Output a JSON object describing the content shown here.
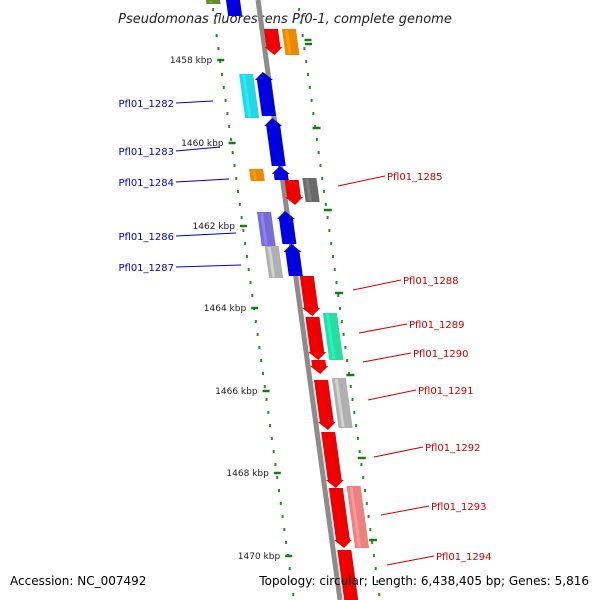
{
  "title": "Pseudomonas fluorescens Pf0-1, complete genome",
  "footer": {
    "accession": "Accession: NC_007492",
    "summary": "Topology: circular; Length: 6,438,405 bp; Genes: 5,816"
  },
  "colors": {
    "backbone": "#8c8c8c",
    "tick": "#1a7a1a",
    "dot": "#2e8b2e",
    "left_label": "#0000cc",
    "right_label": "#cc0000",
    "gene_blue": "#0000dd",
    "gene_red": "#ee0000",
    "gene_cyan": "#22d8e8",
    "gene_orange": "#ee8800",
    "gene_gray": "#b0b0b0",
    "gene_darkgray": "#6a6a6a",
    "gene_purple": "#7a6ad8",
    "gene_green": "#22e0a0",
    "gene_pink": "#ee8080",
    "gene_olive": "#6a8a2a"
  },
  "scale_labels": [
    "1458 kbp",
    "1460 kbp",
    "1462 kbp",
    "1464 kbp",
    "1466 kbp",
    "1468 kbp",
    "1470 kbp"
  ],
  "left_genes": [
    "Pfl01_1282",
    "Pfl01_1283",
    "Pfl01_1284",
    "Pfl01_1286",
    "Pfl01_1287"
  ],
  "right_genes": [
    "Pfl01_1285",
    "Pfl01_1288",
    "Pfl01_1289",
    "Pfl01_1290",
    "Pfl01_1291",
    "Pfl01_1292",
    "Pfl01_1293",
    "Pfl01_1294"
  ]
}
